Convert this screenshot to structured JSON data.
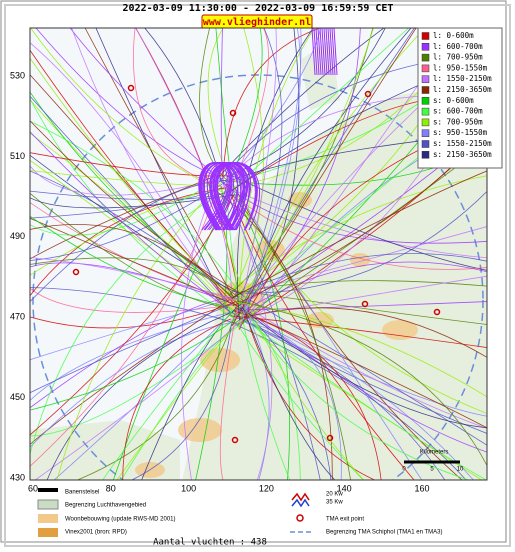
{
  "header": {
    "period": "2022-03-09 11:30:00 - 2022-03-09 16:59:59 CET",
    "site": "www.vlieghinder.nl"
  },
  "legend": [
    {
      "label": "l: 0-600m",
      "color": "#d40000"
    },
    {
      "label": "l: 600-700m",
      "color": "#9b30ff"
    },
    {
      "label": "l: 700-950m",
      "color": "#4f7f00"
    },
    {
      "label": "l: 950-1550m",
      "color": "#ff5f8f"
    },
    {
      "label": "l: 1550-2150m",
      "color": "#c070ff"
    },
    {
      "label": "l: 2150-3650m",
      "color": "#8b2500"
    },
    {
      "label": "s: 0-600m",
      "color": "#00d000"
    },
    {
      "label": "s: 600-700m",
      "color": "#40ff40"
    },
    {
      "label": "s: 700-950m",
      "color": "#90f000"
    },
    {
      "label": "s: 950-1550m",
      "color": "#8080ff"
    },
    {
      "label": "s: 1550-2150m",
      "color": "#5050c8"
    },
    {
      "label": "s: 2150-3650m",
      "color": "#2a2a80"
    }
  ],
  "axes": {
    "y": [
      530,
      510,
      490,
      470,
      450,
      430
    ],
    "x": [
      60,
      80,
      100,
      120,
      140,
      160
    ]
  },
  "scale": {
    "title": "Kilometers",
    "ticks": [
      "0",
      "5",
      "10"
    ]
  },
  "key": {
    "runways": "Banenstelsel",
    "boundary": "Begrenzing Luchthavengebied",
    "housing": "Woonbebouwing (update RWS-MD 2001)",
    "vinex": "Vinex2001 (bron: RPD)",
    "kw20": "20 Kw",
    "kw35": "35 Kw",
    "exit": "TMA exit point",
    "tma": "Begrenzing TMA Schiphol (TMA1 en TMA3)"
  },
  "count": "Aantal vluchten : 438"
}
